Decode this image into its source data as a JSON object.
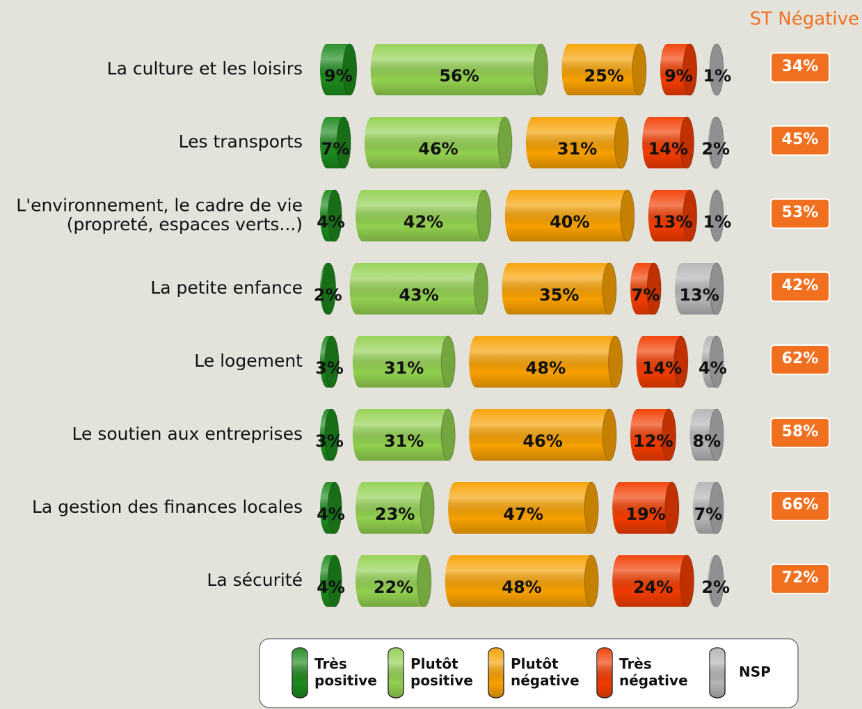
{
  "chart_data": {
    "type": "bar",
    "stacked": true,
    "orientation": "horizontal",
    "categories": [
      "La culture et les loisirs",
      "Les transports",
      "L'environnement, le cadre de vie\n(propreté, espaces verts...)",
      "La petite enfance",
      "Le logement",
      "Le soutien aux entreprises",
      "La gestion des finances locales",
      "La sécurité"
    ],
    "series": [
      {
        "name": "Très positive",
        "color": "#1d8a1d",
        "values": [
          9,
          7,
          4,
          2,
          3,
          3,
          4,
          4
        ],
        "value_labels": [
          "9%",
          "7%",
          "4%",
          "2%",
          "3%",
          "3%",
          "4%",
          "4%"
        ]
      },
      {
        "name": "Plutôt positive",
        "color": "#92d050",
        "values": [
          56,
          46,
          42,
          43,
          31,
          31,
          23,
          22
        ],
        "value_labels": [
          "56%",
          "46%",
          "42%",
          "43%",
          "31%",
          "31%",
          "23%",
          "22%"
        ]
      },
      {
        "name": "Plutôt négative",
        "color": "#f7a000",
        "values": [
          25,
          31,
          40,
          35,
          48,
          46,
          47,
          48
        ],
        "value_labels": [
          "25%",
          "31%",
          "40%",
          "35%",
          "48%",
          "46%",
          "47%",
          "48%"
        ]
      },
      {
        "name": "Très négative",
        "color": "#f23c00",
        "values": [
          9,
          14,
          13,
          7,
          14,
          12,
          19,
          24
        ],
        "value_labels": [
          "9%",
          "14%",
          "13%",
          "7%",
          "14%",
          "12%",
          "19%",
          "24%"
        ]
      },
      {
        "name": "NSP",
        "color": "#b4b4b4",
        "values": [
          1,
          2,
          1,
          13,
          4,
          8,
          7,
          2
        ],
        "value_labels": [
          "1%",
          "2%",
          "1%",
          "13%",
          "4%",
          "8%",
          "7%",
          "2%"
        ]
      }
    ],
    "st_negative": {
      "name": "ST Négative",
      "color": "#f07020",
      "values": [
        34,
        45,
        53,
        42,
        62,
        58,
        66,
        72
      ],
      "value_labels": [
        "34%",
        "45%",
        "53%",
        "42%",
        "62%",
        "58%",
        "66%",
        "72%"
      ]
    }
  }
}
